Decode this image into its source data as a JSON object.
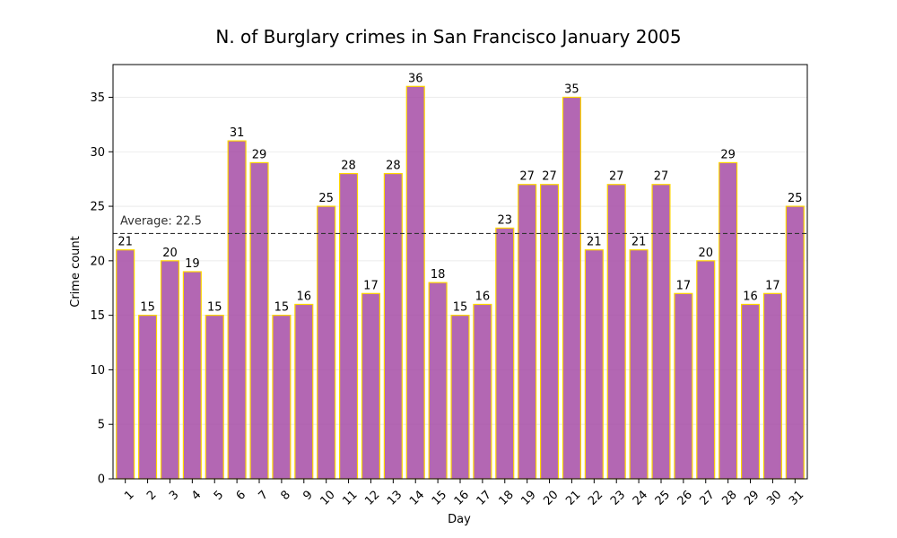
{
  "chart_data": {
    "type": "bar",
    "title": "N. of Burglary crimes in San Francisco January 2005",
    "xlabel": "Day",
    "ylabel": "Crime count",
    "ylim": [
      0,
      38
    ],
    "yticks": [
      0,
      5,
      10,
      15,
      20,
      25,
      30,
      35
    ],
    "categories": [
      "1",
      "2",
      "3",
      "4",
      "5",
      "6",
      "7",
      "8",
      "9",
      "10",
      "11",
      "12",
      "13",
      "14",
      "15",
      "16",
      "17",
      "18",
      "19",
      "20",
      "21",
      "22",
      "23",
      "24",
      "25",
      "26",
      "27",
      "28",
      "29",
      "30",
      "31"
    ],
    "values": [
      21,
      15,
      20,
      19,
      15,
      31,
      29,
      15,
      16,
      25,
      28,
      17,
      28,
      36,
      18,
      15,
      16,
      23,
      27,
      27,
      35,
      21,
      27,
      21,
      27,
      17,
      20,
      29,
      16,
      17,
      25
    ],
    "average": 22.5,
    "average_label": "Average: 22.5",
    "grid": "horizontal",
    "colors": {
      "bar_fill": "#a64ca6",
      "bar_edge": "#ffd700",
      "average_line": "#333333",
      "grid": "#e6e6e6"
    }
  }
}
